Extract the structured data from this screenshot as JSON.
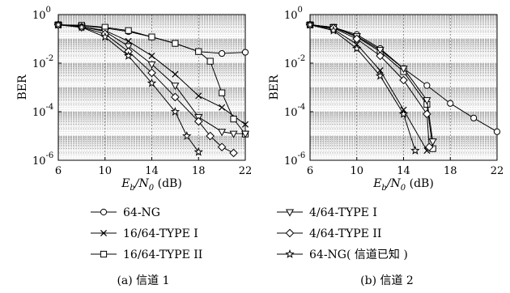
{
  "chart_data": [
    {
      "type": "line",
      "caption": "(a) 信道 1",
      "xlabel": "E_b/N_0 (dB)",
      "ylabel": "BER",
      "y_scale": "log",
      "xlim": [
        6,
        22
      ],
      "ylim": [
        1e-06,
        1
      ],
      "x_ticks": [
        6,
        10,
        14,
        18,
        22
      ],
      "y_ticks": [
        1,
        0.01,
        0.0001,
        1e-06
      ],
      "grid": "horizontal",
      "series": [
        {
          "name": "64-NG",
          "marker": "circle",
          "x": [
            6,
            8,
            10,
            12,
            14,
            16,
            18,
            20,
            22
          ],
          "y": [
            0.38,
            0.35,
            0.28,
            0.2,
            0.12,
            0.065,
            0.03,
            0.025,
            0.028
          ]
        },
        {
          "name": "16/64-TYPE I",
          "marker": "x",
          "x": [
            6,
            8,
            10,
            12,
            14,
            16,
            18,
            20,
            22
          ],
          "y": [
            0.38,
            0.32,
            0.22,
            0.08,
            0.02,
            0.0035,
            0.00045,
            0.00015,
            3e-05
          ]
        },
        {
          "name": "16/64-TYPE II",
          "marker": "square",
          "x": [
            6,
            8,
            10,
            12,
            14,
            16,
            18,
            19,
            20,
            21,
            22
          ],
          "y": [
            0.38,
            0.36,
            0.3,
            0.22,
            0.12,
            0.065,
            0.03,
            0.012,
            0.0006,
            5e-05,
            1.2e-05
          ]
        },
        {
          "name": "4/64-TYPE I",
          "marker": "triangle",
          "x": [
            6,
            8,
            10,
            12,
            14,
            16,
            18,
            20,
            21,
            22
          ],
          "y": [
            0.38,
            0.32,
            0.2,
            0.05,
            0.009,
            0.0012,
            6e-05,
            1.5e-05,
            1.25e-05,
            1.25e-05
          ]
        },
        {
          "name": "4/64-TYPE II",
          "marker": "diamond",
          "x": [
            6,
            8,
            10,
            12,
            14,
            16,
            18,
            19,
            20,
            21
          ],
          "y": [
            0.38,
            0.3,
            0.16,
            0.03,
            0.004,
            0.0004,
            4e-05,
            1e-05,
            3.5e-06,
            2e-06
          ]
        },
        {
          "name": "64-NG( 信道已知 )",
          "marker": "star",
          "x": [
            6,
            8,
            10,
            12,
            14,
            16,
            17,
            18
          ],
          "y": [
            0.38,
            0.3,
            0.12,
            0.02,
            0.0015,
            0.0001,
            1e-05,
            2.2e-06
          ]
        }
      ]
    },
    {
      "type": "line",
      "caption": "(b) 信道 2",
      "xlabel": "E_b/N_0 (dB)",
      "ylabel": "BER",
      "y_scale": "log",
      "xlim": [
        6,
        22
      ],
      "ylim": [
        1e-06,
        1
      ],
      "x_ticks": [
        6,
        10,
        14,
        18,
        22
      ],
      "y_ticks": [
        1,
        0.01,
        0.0001,
        1e-06
      ],
      "grid": "horizontal",
      "series": [
        {
          "name": "64-NG",
          "marker": "circle",
          "x": [
            6,
            8,
            10,
            12,
            14,
            16,
            18,
            20,
            22
          ],
          "y": [
            0.38,
            0.3,
            0.15,
            0.04,
            0.006,
            0.0012,
            0.00022,
            5.5e-05,
            1.5e-05
          ]
        },
        {
          "name": "16/64-TYPE I",
          "marker": "x",
          "x": [
            6,
            8,
            10,
            12,
            14,
            16
          ],
          "y": [
            0.38,
            0.25,
            0.06,
            0.005,
            0.00012,
            2.5e-06
          ]
        },
        {
          "name": "16/64-TYPE II",
          "marker": "square",
          "x": [
            6,
            8,
            10,
            12,
            14,
            16,
            16.5
          ],
          "y": [
            0.38,
            0.3,
            0.12,
            0.03,
            0.0045,
            0.0002,
            3e-06
          ]
        },
        {
          "name": "4/64-TYPE I",
          "marker": "triangle",
          "x": [
            6,
            8,
            10,
            12,
            14,
            16,
            16.5
          ],
          "y": [
            0.38,
            0.3,
            0.13,
            0.035,
            0.006,
            0.0003,
            6e-06
          ]
        },
        {
          "name": "4/64-TYPE II",
          "marker": "diamond",
          "x": [
            6,
            8,
            10,
            12,
            14,
            16,
            16.2
          ],
          "y": [
            0.38,
            0.28,
            0.1,
            0.02,
            0.002,
            8e-05,
            3.5e-06
          ]
        },
        {
          "name": "64-NG( 信道已知 )",
          "marker": "star",
          "x": [
            6,
            8,
            10,
            12,
            14,
            15
          ],
          "y": [
            0.38,
            0.22,
            0.04,
            0.003,
            8e-05,
            2.5e-06
          ]
        }
      ]
    }
  ],
  "legend": [
    {
      "name": "64-NG",
      "marker": "circle"
    },
    {
      "name": "4/64-TYPE I",
      "marker": "triangle"
    },
    {
      "name": "16/64-TYPE I",
      "marker": "x"
    },
    {
      "name": "4/64-TYPE II",
      "marker": "diamond"
    },
    {
      "name": "16/64-TYPE II",
      "marker": "square"
    },
    {
      "name": "64-NG( 信道已知 )",
      "marker": "star"
    }
  ]
}
